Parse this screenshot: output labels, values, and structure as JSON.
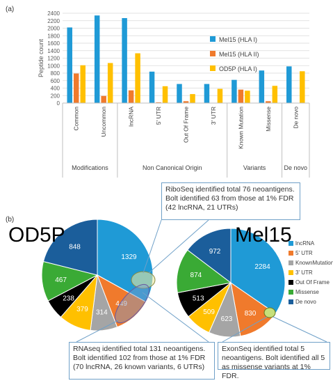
{
  "panel_a_label": "(a)",
  "panel_b_label": "(b)",
  "chart_data": [
    {
      "type": "bar",
      "ylabel": "Peptide count",
      "ylim": [
        0,
        2400
      ],
      "yticks": [
        0,
        200,
        400,
        600,
        800,
        1000,
        1200,
        1400,
        1600,
        1800,
        2000,
        2200,
        2400
      ],
      "grid": true,
      "legend_position": "right",
      "categories": [
        "Common",
        "Uncommon",
        "lncRNA",
        "5' UTR",
        "Out Of Frame",
        "3' UTR",
        "Known Mutation",
        "Missense",
        "De novo"
      ],
      "groups": [
        {
          "label": "Modifications",
          "categories": [
            "Common",
            "Uncommon"
          ]
        },
        {
          "label": "Non Canonical Origin",
          "categories": [
            "lncRNA",
            "5' UTR",
            "Out Of Frame",
            "3' UTR"
          ]
        },
        {
          "label": "Variants",
          "categories": [
            "Known Mutation",
            "Missense"
          ]
        },
        {
          "label": "De novo",
          "categories": [
            "De novo"
          ]
        }
      ],
      "series": [
        {
          "name": "Mel15 (HLA I)",
          "color": "#1f9ad6",
          "values": [
            2020,
            2340,
            2270,
            840,
            510,
            510,
            620,
            870,
            980
          ]
        },
        {
          "name": "Mel15 (HLA II)",
          "color": "#f07a2c",
          "values": [
            790,
            190,
            340,
            20,
            50,
            0,
            360,
            50,
            0
          ]
        },
        {
          "name": "OD5P (HLA I)",
          "color": "#ffc000",
          "values": [
            1010,
            1070,
            1330,
            450,
            240,
            380,
            330,
            460,
            850
          ]
        }
      ]
    },
    {
      "type": "pie",
      "title": "OD5P",
      "slices": [
        {
          "category": "lncRNA",
          "value": 1329,
          "color": "#1f9ad6"
        },
        {
          "category": "5' UTR",
          "value": 449,
          "color": "#f07a2c"
        },
        {
          "category": "KnownMutation",
          "value": 314,
          "color": "#a5a5a5"
        },
        {
          "category": "3' UTR",
          "value": 379,
          "color": "#ffc000"
        },
        {
          "category": "Out Of Frame",
          "value": 238,
          "color": "#000000"
        },
        {
          "category": "Missense",
          "value": 467,
          "color": "#3aaa35"
        },
        {
          "category": "De novo",
          "value": 848,
          "color": "#1b5e9b"
        }
      ]
    },
    {
      "type": "pie",
      "title": "Mel15",
      "slices": [
        {
          "category": "lncRNA",
          "value": 2284,
          "color": "#1f9ad6"
        },
        {
          "category": "5' UTR",
          "value": 830,
          "color": "#f07a2c"
        },
        {
          "category": "KnownMutation",
          "value": 623,
          "color": "#a5a5a5"
        },
        {
          "category": "3' UTR",
          "value": 509,
          "color": "#ffc000"
        },
        {
          "category": "Out Of Frame",
          "value": 513,
          "color": "#000000"
        },
        {
          "category": "Missense",
          "value": 874,
          "color": "#3aaa35"
        },
        {
          "category": "De novo",
          "value": 972,
          "color": "#1b5e9b"
        }
      ]
    }
  ],
  "pie_legend": [
    {
      "label": "lncRNA",
      "color": "#1f9ad6"
    },
    {
      "label": "5' UTR",
      "color": "#f07a2c"
    },
    {
      "label": "KnownMutation",
      "color": "#a5a5a5"
    },
    {
      "label": "3' UTR",
      "color": "#ffc000"
    },
    {
      "label": "Out Of Frame",
      "color": "#000000"
    },
    {
      "label": "Missense",
      "color": "#3aaa35"
    },
    {
      "label": "De novo",
      "color": "#1b5e9b"
    }
  ],
  "callouts": {
    "riboseq": "RiboSeq identified total 76 neoantigens. Bolt identified 63 from those at 1% FDR (42 lncRNA, 21 UTRs)",
    "rnaseq": "RNAseq identified total 131 neoantigens. Bolt identified 102 from those at 1% FDR (70 lncRNA, 26 known variants, 6 UTRs)",
    "exonseq": "ExonSeq identified total 5 neoantigens. Bolt identified all 5 as missense variants at 1% FDR."
  }
}
